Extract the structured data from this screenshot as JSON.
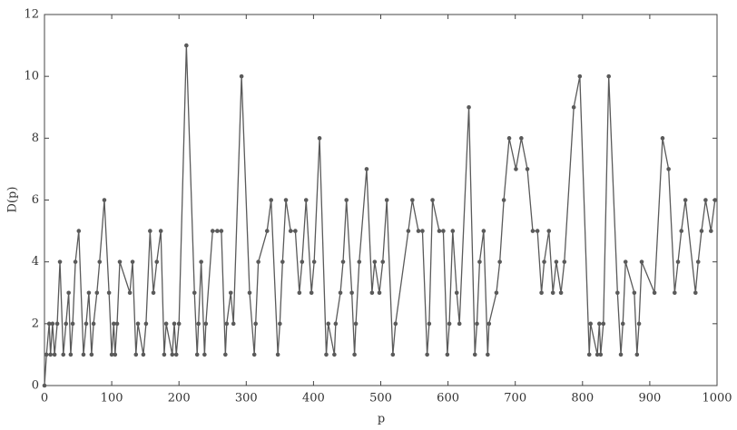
{
  "chart_data": {
    "type": "line",
    "xlabel": "p",
    "ylabel": "D(p)",
    "x": [
      0,
      3,
      7,
      9,
      12,
      15,
      19,
      23,
      28,
      32,
      36,
      39,
      42,
      46,
      51,
      58,
      62,
      66,
      70,
      73,
      78,
      82,
      89,
      96,
      100,
      103,
      105,
      108,
      112,
      127,
      131,
      136,
      139,
      147,
      151,
      157,
      162,
      167,
      173,
      178,
      181,
      190,
      193,
      196,
      200,
      211,
      223,
      227,
      229,
      233,
      238,
      240,
      250,
      257,
      263,
      269,
      271,
      277,
      281,
      293,
      305,
      312,
      314,
      318,
      331,
      337,
      347,
      350,
      354,
      359,
      366,
      373,
      379,
      383,
      389,
      397,
      401,
      409,
      419,
      422,
      431,
      433,
      440,
      444,
      449,
      457,
      461,
      463,
      468,
      479,
      487,
      491,
      498,
      503,
      509,
      518,
      522,
      541,
      547,
      556,
      562,
      569,
      572,
      577,
      587,
      593,
      599,
      602,
      607,
      613,
      617,
      631,
      640,
      643,
      647,
      653,
      659,
      661,
      672,
      677,
      683,
      691,
      701,
      709,
      718,
      726,
      733,
      739,
      743,
      750,
      756,
      761,
      768,
      773,
      787,
      796,
      810,
      812,
      822,
      825,
      827,
      831,
      839,
      852,
      857,
      860,
      864,
      877,
      881,
      884,
      888,
      907,
      919,
      928,
      937,
      942,
      947,
      953,
      968,
      972,
      977,
      983,
      991,
      997
    ],
    "series": [
      {
        "name": "D(p)",
        "color": "#5a5a5a",
        "values": [
          0,
          1,
          2,
          1,
          2,
          1,
          2,
          4,
          1,
          2,
          3,
          1,
          2,
          4,
          5,
          1,
          2,
          3,
          1,
          2,
          3,
          4,
          6,
          3,
          1,
          2,
          1,
          2,
          4,
          3,
          4,
          1,
          2,
          1,
          2,
          5,
          3,
          4,
          5,
          1,
          2,
          1,
          2,
          1,
          2,
          11,
          3,
          1,
          2,
          4,
          1,
          2,
          5,
          5,
          5,
          1,
          2,
          3,
          2,
          10,
          3,
          1,
          2,
          4,
          5,
          6,
          1,
          2,
          4,
          6,
          5,
          5,
          3,
          4,
          6,
          3,
          4,
          8,
          1,
          2,
          1,
          2,
          3,
          4,
          6,
          3,
          1,
          2,
          4,
          7,
          3,
          4,
          3,
          4,
          6,
          1,
          2,
          5,
          6,
          5,
          5,
          1,
          2,
          6,
          5,
          5,
          1,
          2,
          5,
          3,
          2,
          9,
          1,
          2,
          4,
          5,
          1,
          2,
          3,
          4,
          6,
          8,
          7,
          8,
          7,
          5,
          5,
          3,
          4,
          5,
          3,
          4,
          3,
          4,
          9,
          10,
          1,
          2,
          1,
          2,
          1,
          2,
          10,
          3,
          1,
          2,
          4,
          3,
          1,
          2,
          4,
          3,
          8,
          7,
          3,
          4,
          5,
          6,
          3,
          4,
          5,
          6,
          5,
          6
        ]
      }
    ],
    "xlim": [
      0,
      1000
    ],
    "xticks": [
      0,
      100,
      200,
      300,
      400,
      500,
      600,
      700,
      800,
      900,
      1000
    ],
    "ylim": [
      0,
      12
    ],
    "yticks": [
      0,
      2,
      4,
      6,
      8,
      10,
      12
    ]
  }
}
